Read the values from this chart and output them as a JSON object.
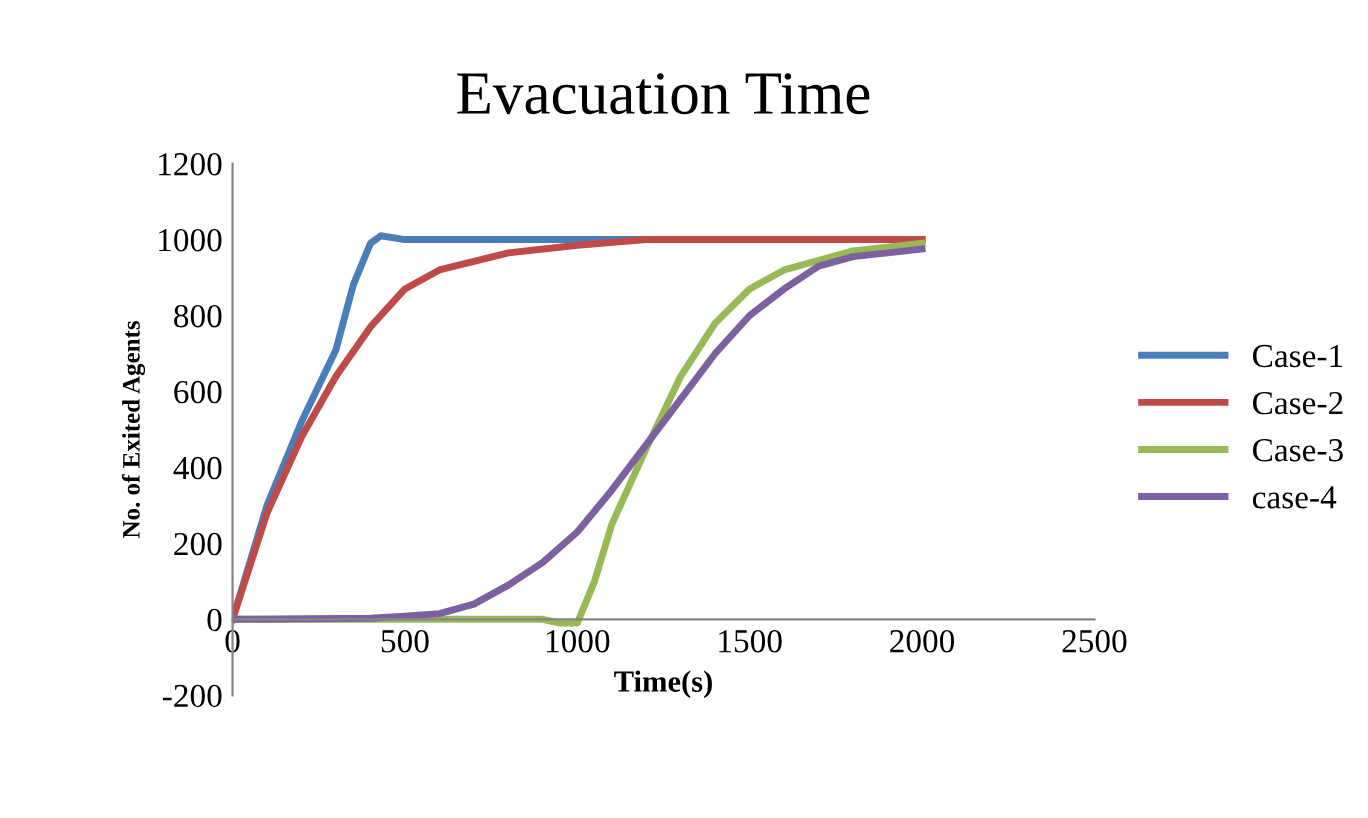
{
  "chart_data": {
    "type": "line",
    "title": "Evacuation Time",
    "xlabel": "Time(s)",
    "ylabel": "No. of Exited Agents",
    "xlim": [
      0,
      2500
    ],
    "xticks": [
      0,
      500,
      1000,
      1500,
      2000,
      2500
    ],
    "ylim": [
      -200,
      1200
    ],
    "yticks": [
      -200,
      0,
      200,
      400,
      600,
      800,
      1000,
      1200
    ],
    "grid": false,
    "legend": "right",
    "marker": "none",
    "line_style": "solid",
    "series": [
      {
        "name": "Case-1",
        "color": "#4a7ebb",
        "x": [
          0,
          100,
          200,
          300,
          350,
          400,
          430,
          500,
          1000,
          2000
        ],
        "values": [
          0,
          300,
          520,
          710,
          880,
          990,
          1010,
          1000,
          1000,
          1000
        ]
      },
      {
        "name": "Case-2",
        "color": "#be4b48",
        "x": [
          0,
          100,
          200,
          300,
          400,
          500,
          600,
          800,
          1000,
          1200,
          2000
        ],
        "values": [
          0,
          280,
          480,
          640,
          770,
          870,
          920,
          965,
          985,
          1000,
          1000
        ]
      },
      {
        "name": "Case-3",
        "color": "#98b954",
        "x": [
          0,
          900,
          950,
          1000,
          1050,
          1100,
          1200,
          1300,
          1400,
          1500,
          1600,
          1800,
          2000
        ],
        "values": [
          0,
          0,
          -10,
          -10,
          100,
          250,
          450,
          640,
          780,
          870,
          920,
          970,
          990
        ]
      },
      {
        "name": "case-4",
        "color": "#7d60a0",
        "x": [
          0,
          400,
          500,
          600,
          700,
          800,
          900,
          1000,
          1100,
          1200,
          1300,
          1400,
          1500,
          1600,
          1700,
          1800,
          1900,
          2000
        ],
        "values": [
          0,
          3,
          8,
          15,
          40,
          90,
          150,
          230,
          340,
          460,
          580,
          700,
          800,
          870,
          930,
          955,
          965,
          975
        ]
      }
    ]
  }
}
